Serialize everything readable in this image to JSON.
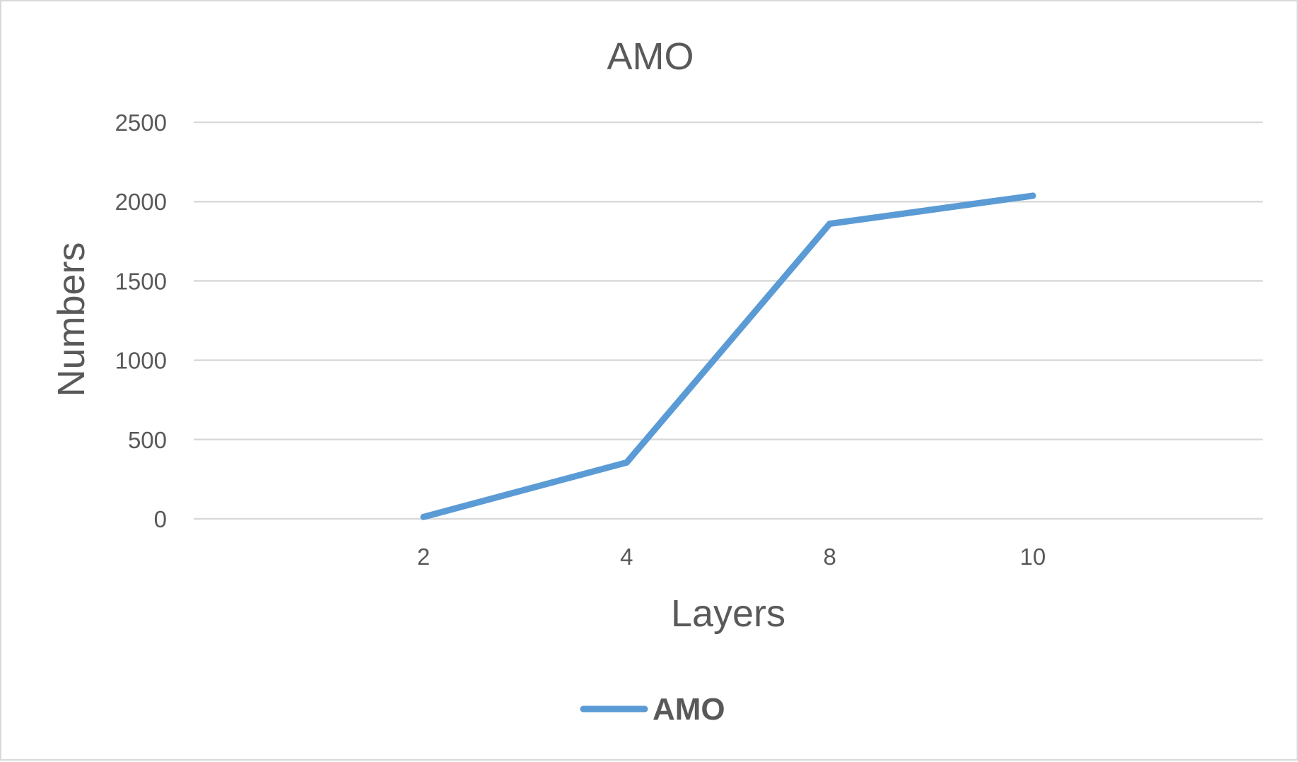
{
  "chart_data": {
    "type": "line",
    "title": "AMO",
    "xlabel": "Layers",
    "ylabel": "Numbers",
    "categories": [
      "2",
      "4",
      "8",
      "10"
    ],
    "series": [
      {
        "name": "AMO",
        "values": [
          12,
          355,
          1860,
          2037
        ],
        "color": "#5b9bd5"
      }
    ],
    "ylim": [
      0,
      2500
    ],
    "yticks": [
      "0",
      "500",
      "1000",
      "1500",
      "2000",
      "2500"
    ],
    "grid": true,
    "legend_position": "bottom"
  }
}
